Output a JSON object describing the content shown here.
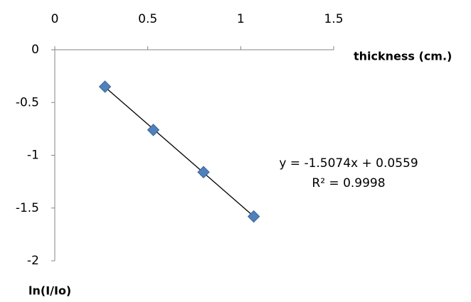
{
  "chart_data": {
    "type": "scatter",
    "x_label": "thickness (cm.)",
    "y_label": "ln(I/Io)",
    "series": [
      {
        "color": "#4f81bd",
        "x": [
          0.27,
          0.53,
          0.8,
          1.07
        ],
        "values": [
          -0.35,
          -0.76,
          -1.16,
          -1.58
        ]
      }
    ],
    "trendline": true,
    "annotations": [
      "y = -1.5074x + 0.0559",
      "R² = 0.9998"
    ],
    "xlim": [
      0,
      1.5
    ],
    "xticks": [
      0,
      0.5,
      1,
      1.5
    ],
    "ylim": [
      -2,
      0
    ],
    "yticks": [
      0,
      -0.5,
      -1,
      -1.5,
      -2
    ]
  }
}
